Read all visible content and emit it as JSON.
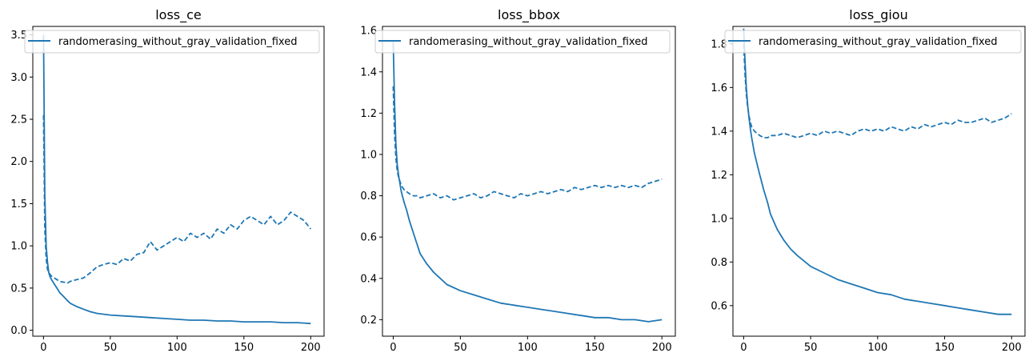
{
  "figure": {
    "line_color": "#1f77b4"
  },
  "chart_data": [
    {
      "type": "line",
      "title": "loss_ce",
      "xlabel": "",
      "ylabel": "",
      "xlim": [
        -8,
        210
      ],
      "ylim": [
        -0.07,
        3.6
      ],
      "xticks": [
        0,
        50,
        100,
        150,
        200
      ],
      "yticks": [
        0.0,
        0.5,
        1.0,
        1.5,
        2.0,
        2.5,
        3.0,
        3.5
      ],
      "ytick_labels": [
        "0.0",
        "0.5",
        "1.0",
        "1.5",
        "2.0",
        "2.5",
        "3.0",
        "3.5"
      ],
      "legend": {
        "location": "top-right",
        "entries": [
          "randomerasing_without_gray_validation_fixed"
        ]
      },
      "series": [
        {
          "name": "randomerasing_without_gray_validation_fixed",
          "style": "solid",
          "x": [
            0,
            1,
            2,
            3,
            4,
            5,
            6,
            8,
            10,
            12,
            15,
            18,
            20,
            25,
            30,
            35,
            40,
            50,
            60,
            70,
            80,
            90,
            100,
            110,
            120,
            130,
            140,
            150,
            160,
            170,
            180,
            190,
            200
          ],
          "y": [
            3.5,
            1.6,
            1.0,
            0.8,
            0.68,
            0.63,
            0.6,
            0.55,
            0.5,
            0.45,
            0.4,
            0.35,
            0.32,
            0.28,
            0.25,
            0.22,
            0.2,
            0.18,
            0.17,
            0.16,
            0.15,
            0.14,
            0.13,
            0.12,
            0.12,
            0.11,
            0.11,
            0.1,
            0.1,
            0.1,
            0.09,
            0.09,
            0.08
          ]
        },
        {
          "name": "",
          "style": "dashed",
          "x": [
            0,
            1,
            2,
            3,
            4,
            5,
            6,
            8,
            10,
            12,
            15,
            18,
            20,
            25,
            30,
            35,
            40,
            45,
            50,
            55,
            60,
            65,
            70,
            75,
            80,
            85,
            90,
            95,
            100,
            105,
            110,
            115,
            120,
            125,
            130,
            135,
            140,
            145,
            150,
            155,
            160,
            165,
            170,
            175,
            180,
            185,
            190,
            195,
            200
          ],
          "y": [
            2.55,
            1.2,
            0.85,
            0.72,
            0.68,
            0.66,
            0.64,
            0.62,
            0.6,
            0.58,
            0.57,
            0.56,
            0.58,
            0.6,
            0.62,
            0.68,
            0.75,
            0.78,
            0.8,
            0.78,
            0.85,
            0.82,
            0.9,
            0.92,
            1.05,
            0.95,
            1.0,
            1.05,
            1.1,
            1.05,
            1.15,
            1.1,
            1.15,
            1.08,
            1.2,
            1.15,
            1.25,
            1.2,
            1.3,
            1.35,
            1.3,
            1.25,
            1.35,
            1.25,
            1.3,
            1.4,
            1.35,
            1.3,
            1.2
          ]
        }
      ]
    },
    {
      "type": "line",
      "title": "loss_bbox",
      "xlabel": "",
      "ylabel": "",
      "xlim": [
        -8,
        210
      ],
      "ylim": [
        0.12,
        1.62
      ],
      "xticks": [
        0,
        50,
        100,
        150,
        200
      ],
      "yticks": [
        0.2,
        0.4,
        0.6,
        0.8,
        1.0,
        1.2,
        1.4,
        1.6
      ],
      "ytick_labels": [
        "0.2",
        "0.4",
        "0.6",
        "0.8",
        "1.0",
        "1.2",
        "1.4",
        "1.6"
      ],
      "legend": {
        "location": "top-right",
        "entries": [
          "randomerasing_without_gray_validation_fixed"
        ]
      },
      "series": [
        {
          "name": "randomerasing_without_gray_validation_fixed",
          "style": "solid",
          "x": [
            0,
            1,
            2,
            3,
            4,
            5,
            6,
            8,
            10,
            12,
            15,
            18,
            20,
            25,
            30,
            35,
            40,
            50,
            60,
            70,
            80,
            90,
            100,
            110,
            120,
            130,
            140,
            150,
            160,
            170,
            180,
            190,
            200
          ],
          "y": [
            1.55,
            1.25,
            1.05,
            0.95,
            0.9,
            0.86,
            0.82,
            0.77,
            0.73,
            0.68,
            0.62,
            0.56,
            0.52,
            0.47,
            0.43,
            0.4,
            0.37,
            0.34,
            0.32,
            0.3,
            0.28,
            0.27,
            0.26,
            0.25,
            0.24,
            0.23,
            0.22,
            0.21,
            0.21,
            0.2,
            0.2,
            0.19,
            0.2
          ]
        },
        {
          "name": "",
          "style": "dashed",
          "x": [
            0,
            1,
            2,
            3,
            4,
            5,
            6,
            8,
            10,
            12,
            15,
            18,
            20,
            25,
            30,
            35,
            40,
            45,
            50,
            55,
            60,
            65,
            70,
            75,
            80,
            85,
            90,
            95,
            100,
            105,
            110,
            115,
            120,
            125,
            130,
            135,
            140,
            145,
            150,
            155,
            160,
            165,
            170,
            175,
            180,
            185,
            190,
            195,
            200
          ],
          "y": [
            1.33,
            1.1,
            0.98,
            0.92,
            0.89,
            0.87,
            0.85,
            0.83,
            0.82,
            0.81,
            0.8,
            0.8,
            0.79,
            0.8,
            0.81,
            0.79,
            0.8,
            0.78,
            0.79,
            0.8,
            0.81,
            0.79,
            0.8,
            0.82,
            0.81,
            0.8,
            0.79,
            0.81,
            0.8,
            0.81,
            0.82,
            0.81,
            0.82,
            0.83,
            0.82,
            0.84,
            0.83,
            0.84,
            0.85,
            0.84,
            0.85,
            0.84,
            0.85,
            0.84,
            0.85,
            0.84,
            0.86,
            0.87,
            0.88
          ]
        }
      ]
    },
    {
      "type": "line",
      "title": "loss_giou",
      "xlabel": "",
      "ylabel": "",
      "xlim": [
        -8,
        210
      ],
      "ylim": [
        0.46,
        1.88
      ],
      "xticks": [
        0,
        50,
        100,
        150,
        200
      ],
      "yticks": [
        0.6,
        0.8,
        1.0,
        1.2,
        1.4,
        1.6,
        1.8
      ],
      "ytick_labels": [
        "0.6",
        "0.8",
        "1.0",
        "1.2",
        "1.4",
        "1.6",
        "1.8"
      ],
      "legend": {
        "location": "top-right",
        "entries": [
          "randomerasing_without_gray_validation_fixed"
        ]
      },
      "series": [
        {
          "name": "randomerasing_without_gray_validation_fixed",
          "style": "solid",
          "x": [
            0,
            1,
            2,
            3,
            4,
            5,
            6,
            8,
            10,
            12,
            15,
            18,
            20,
            25,
            30,
            35,
            40,
            50,
            60,
            70,
            80,
            90,
            100,
            110,
            120,
            130,
            140,
            150,
            160,
            170,
            180,
            190,
            200
          ],
          "y": [
            1.87,
            1.72,
            1.6,
            1.52,
            1.46,
            1.41,
            1.37,
            1.3,
            1.25,
            1.2,
            1.13,
            1.07,
            1.02,
            0.95,
            0.9,
            0.86,
            0.83,
            0.78,
            0.75,
            0.72,
            0.7,
            0.68,
            0.66,
            0.65,
            0.63,
            0.62,
            0.61,
            0.6,
            0.59,
            0.58,
            0.57,
            0.56,
            0.56
          ]
        },
        {
          "name": "",
          "style": "dashed",
          "x": [
            0,
            1,
            2,
            3,
            4,
            5,
            6,
            8,
            10,
            12,
            15,
            18,
            20,
            25,
            30,
            35,
            40,
            45,
            50,
            55,
            60,
            65,
            70,
            75,
            80,
            85,
            90,
            95,
            100,
            105,
            110,
            115,
            120,
            125,
            130,
            135,
            140,
            145,
            150,
            155,
            160,
            165,
            170,
            175,
            180,
            185,
            190,
            195,
            200
          ],
          "y": [
            1.8,
            1.66,
            1.57,
            1.51,
            1.47,
            1.44,
            1.42,
            1.4,
            1.39,
            1.38,
            1.37,
            1.37,
            1.38,
            1.38,
            1.39,
            1.38,
            1.37,
            1.38,
            1.39,
            1.38,
            1.4,
            1.39,
            1.4,
            1.39,
            1.38,
            1.4,
            1.41,
            1.4,
            1.41,
            1.4,
            1.42,
            1.41,
            1.4,
            1.42,
            1.41,
            1.43,
            1.42,
            1.43,
            1.44,
            1.43,
            1.45,
            1.44,
            1.44,
            1.45,
            1.46,
            1.44,
            1.45,
            1.46,
            1.48
          ]
        }
      ]
    }
  ]
}
